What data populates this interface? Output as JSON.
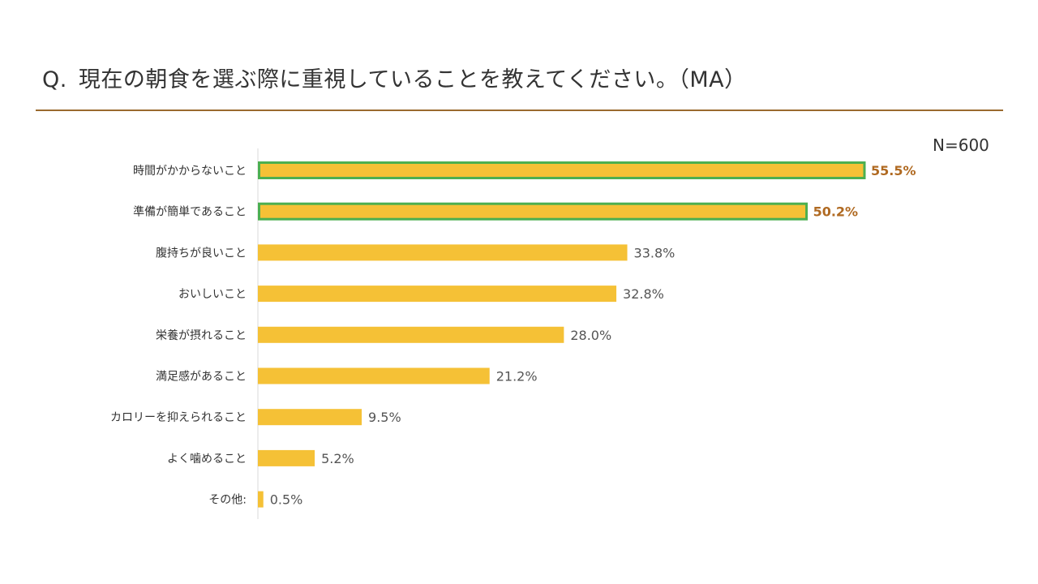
{
  "question": {
    "prefix": "Q.",
    "text": "現在の朝食を選ぶ際に重視していることを教えてください。（MA）"
  },
  "sample_size": "N=600",
  "colors": {
    "bar": "#f5c136",
    "highlight_border": "#4caf50",
    "highlight_label": "#b06a22",
    "normal_label": "#555555",
    "category_label": "#333333",
    "rule": "#9a6a2e",
    "axis": "#d8d8d8"
  },
  "chart_data": {
    "type": "bar",
    "orientation": "horizontal",
    "categories": [
      "時間がかからないこと",
      "準備が簡単であること",
      "腹持ちが良いこと",
      "おいしいこと",
      "栄養が摂れること",
      "満足感があること",
      "カロリーを抑えられること",
      "よく噛めること",
      "その他:"
    ],
    "values": [
      55.5,
      50.2,
      33.8,
      32.8,
      28.0,
      21.2,
      9.5,
      5.2,
      0.5
    ],
    "value_labels": [
      "55.5%",
      "50.2%",
      "33.8%",
      "32.8%",
      "28.0%",
      "21.2%",
      "9.5%",
      "5.2%",
      "0.5%"
    ],
    "highlighted": [
      true,
      true,
      false,
      false,
      false,
      false,
      false,
      false,
      false
    ],
    "unit": "%",
    "title": "",
    "xlabel": "",
    "ylabel": "",
    "grid": false,
    "legend": "none"
  }
}
